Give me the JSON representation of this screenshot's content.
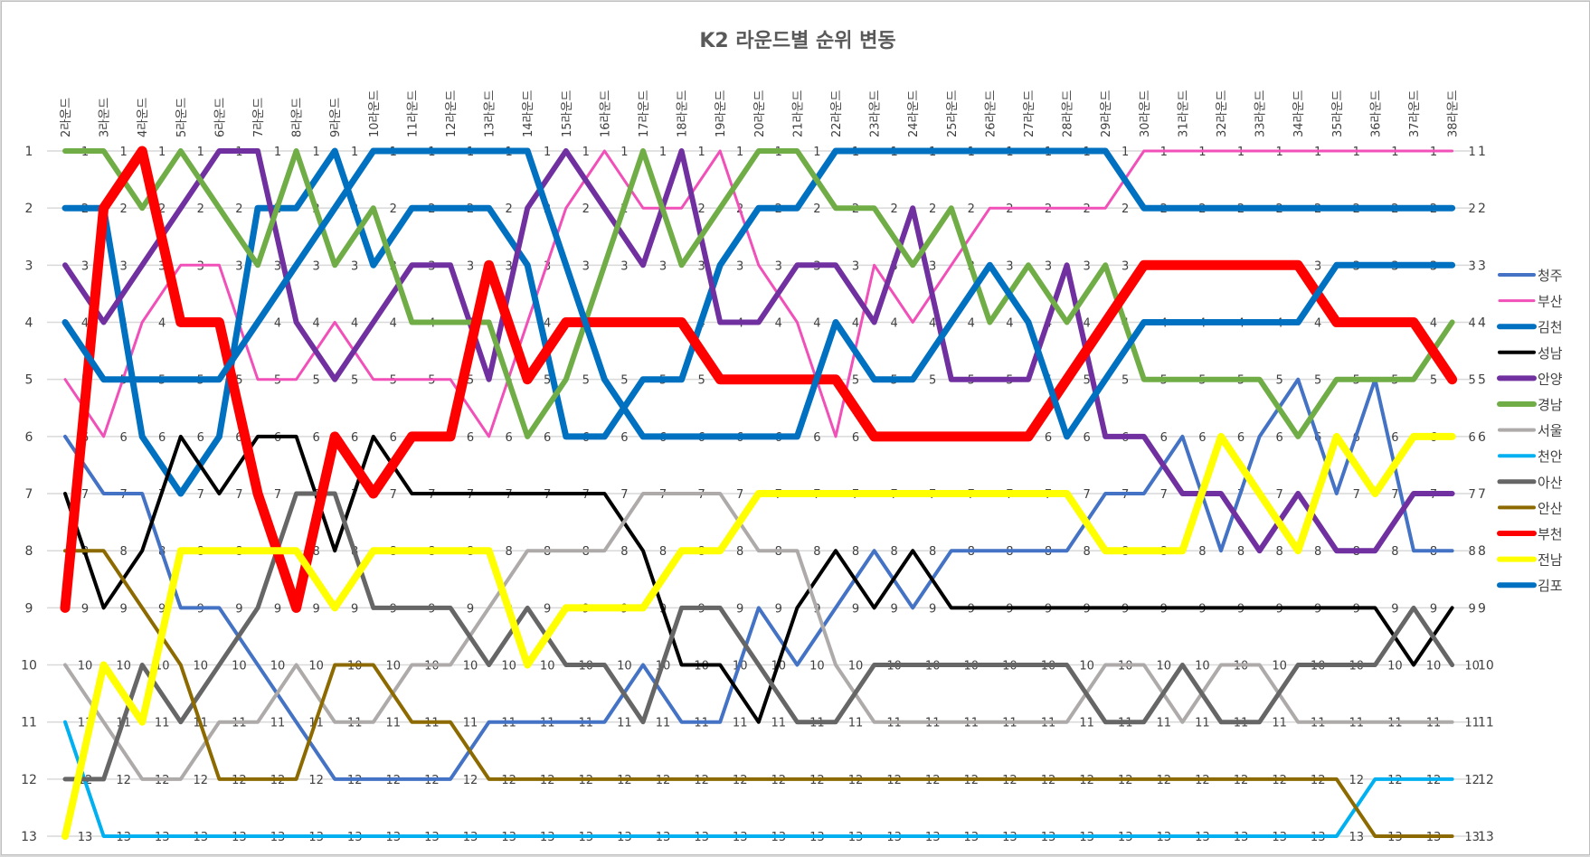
{
  "chart_data": {
    "type": "line",
    "title": "K2 라운드별 순위 변동",
    "xlabel": "",
    "ylabel": "",
    "ylim": [
      1,
      13
    ],
    "y_inverted": true,
    "y_ticks": [
      1,
      2,
      3,
      4,
      5,
      6,
      7,
      8,
      9,
      10,
      11,
      12,
      13
    ],
    "grid": true,
    "legend_position": "right",
    "data_labels": true,
    "categories": [
      "2라운드",
      "3라운드",
      "4라운드",
      "5라운드",
      "6라운드",
      "7라운드",
      "8라운드",
      "9라운드",
      "10라운드",
      "11라운드",
      "12라운드",
      "13라운드",
      "14라운드",
      "15라운드",
      "16라운드",
      "17라운드",
      "18라운드",
      "19라운드",
      "20라운드",
      "21라운드",
      "22라운드",
      "23라운드",
      "24라운드",
      "25라운드",
      "26라운드",
      "27라운드",
      "28라운드",
      "29라운드",
      "30라운드",
      "31라운드",
      "32라운드",
      "33라운드",
      "34라운드",
      "35라운드",
      "36라운드",
      "37라운드",
      "38라운드"
    ],
    "series": [
      {
        "name": "청주",
        "color": "#4472C4",
        "width": 4,
        "values": [
          6,
          7,
          7,
          9,
          9,
          10,
          11,
          12,
          12,
          12,
          12,
          11,
          11,
          11,
          11,
          10,
          11,
          11,
          9,
          10,
          9,
          8,
          9,
          8,
          8,
          8,
          8,
          7,
          7,
          6,
          8,
          6,
          5,
          7,
          5,
          8,
          8
        ]
      },
      {
        "name": "부산",
        "color": "#F050B8",
        "width": 3,
        "values": [
          5,
          6,
          4,
          3,
          3,
          5,
          5,
          4,
          5,
          5,
          5,
          6,
          4,
          2,
          1,
          2,
          2,
          1,
          3,
          4,
          6,
          3,
          4,
          3,
          2,
          2,
          2,
          2,
          1,
          1,
          1,
          1,
          1,
          1,
          1,
          1,
          1
        ]
      },
      {
        "name": "김천",
        "color": "#0070C0",
        "width": 7,
        "values": [
          2,
          2,
          6,
          7,
          6,
          2,
          2,
          1,
          3,
          2,
          2,
          2,
          3,
          6,
          6,
          5,
          5,
          3,
          2,
          2,
          1,
          1,
          1,
          1,
          1,
          1,
          1,
          1,
          2,
          2,
          2,
          2,
          2,
          2,
          2,
          2,
          2
        ]
      },
      {
        "name": "성남",
        "color": "#000000",
        "width": 4,
        "values": [
          7,
          9,
          8,
          6,
          7,
          6,
          6,
          8,
          6,
          7,
          7,
          7,
          7,
          7,
          7,
          8,
          10,
          10,
          11,
          9,
          8,
          9,
          8,
          9,
          9,
          9,
          9,
          9,
          9,
          9,
          9,
          9,
          9,
          9,
          9,
          10,
          9
        ]
      },
      {
        "name": "안양",
        "color": "#7030A0",
        "width": 6,
        "values": [
          3,
          4,
          3,
          2,
          1,
          1,
          4,
          5,
          4,
          3,
          3,
          5,
          2,
          1,
          2,
          3,
          1,
          4,
          4,
          3,
          3,
          4,
          2,
          5,
          5,
          5,
          3,
          6,
          6,
          7,
          7,
          8,
          7,
          8,
          8,
          7,
          7
        ]
      },
      {
        "name": "경남",
        "color": "#70AD47",
        "width": 6,
        "values": [
          1,
          1,
          2,
          1,
          2,
          3,
          1,
          3,
          2,
          4,
          4,
          4,
          6,
          5,
          3,
          1,
          3,
          2,
          1,
          1,
          2,
          2,
          3,
          2,
          4,
          3,
          4,
          3,
          5,
          5,
          5,
          5,
          6,
          5,
          5,
          5,
          4
        ]
      },
      {
        "name": "서울",
        "color": "#AEAAAA",
        "width": 4,
        "values": [
          10,
          11,
          12,
          12,
          11,
          11,
          10,
          11,
          11,
          10,
          10,
          9,
          8,
          8,
          8,
          7,
          7,
          7,
          8,
          8,
          10,
          11,
          11,
          11,
          11,
          11,
          11,
          10,
          10,
          11,
          10,
          10,
          11,
          11,
          11,
          11,
          11
        ]
      },
      {
        "name": "천안",
        "color": "#00B0F0",
        "width": 4,
        "values": [
          11,
          13,
          13,
          13,
          13,
          13,
          13,
          13,
          13,
          13,
          13,
          13,
          13,
          13,
          13,
          13,
          13,
          13,
          13,
          13,
          13,
          13,
          13,
          13,
          13,
          13,
          13,
          13,
          13,
          13,
          13,
          13,
          13,
          13,
          12,
          12,
          12
        ]
      },
      {
        "name": "아산",
        "color": "#666666",
        "width": 5,
        "values": [
          12,
          12,
          10,
          11,
          10,
          9,
          7,
          7,
          9,
          9,
          9,
          10,
          9,
          10,
          10,
          11,
          9,
          9,
          10,
          11,
          11,
          10,
          10,
          10,
          10,
          10,
          10,
          11,
          11,
          10,
          11,
          11,
          10,
          10,
          10,
          9,
          10
        ]
      },
      {
        "name": "안산",
        "color": "#8C6A00",
        "width": 4,
        "values": [
          8,
          8,
          9,
          10,
          12,
          12,
          12,
          10,
          10,
          11,
          11,
          12,
          12,
          12,
          12,
          12,
          12,
          12,
          12,
          12,
          12,
          12,
          12,
          12,
          12,
          12,
          12,
          12,
          12,
          12,
          12,
          12,
          12,
          12,
          13,
          13,
          13
        ]
      },
      {
        "name": "부천",
        "color": "#FF0000",
        "width": 11,
        "values": [
          9,
          2,
          1,
          4,
          4,
          7,
          9,
          6,
          7,
          6,
          6,
          3,
          5,
          4,
          4,
          4,
          4,
          5,
          5,
          5,
          5,
          6,
          6,
          6,
          6,
          6,
          5,
          4,
          3,
          3,
          3,
          3,
          3,
          4,
          4,
          4,
          5
        ]
      },
      {
        "name": "전남",
        "color": "#FFFF00",
        "width": 8,
        "values": [
          13,
          10,
          11,
          8,
          8,
          8,
          8,
          9,
          8,
          8,
          8,
          8,
          10,
          9,
          9,
          9,
          8,
          8,
          7,
          7,
          7,
          7,
          7,
          7,
          7,
          7,
          7,
          8,
          8,
          8,
          6,
          7,
          8,
          6,
          7,
          6,
          6
        ]
      },
      {
        "name": "김포",
        "color": "#0070C0",
        "width": 7,
        "values": [
          4,
          5,
          5,
          5,
          5,
          4,
          3,
          2,
          1,
          1,
          1,
          1,
          1,
          3,
          5,
          6,
          6,
          6,
          6,
          6,
          4,
          5,
          5,
          4,
          3,
          4,
          6,
          5,
          4,
          4,
          4,
          4,
          4,
          3,
          3,
          3,
          3
        ]
      }
    ],
    "right_axis_labels": [
      1,
      2,
      3,
      4,
      5,
      6,
      7,
      8,
      9,
      10,
      11,
      12,
      13
    ]
  },
  "legend": {
    "items": [
      "청주",
      "부산",
      "김천",
      "성남",
      "안양",
      "경남",
      "서울",
      "천안",
      "아산",
      "안산",
      "부천",
      "전남",
      "김포"
    ]
  }
}
